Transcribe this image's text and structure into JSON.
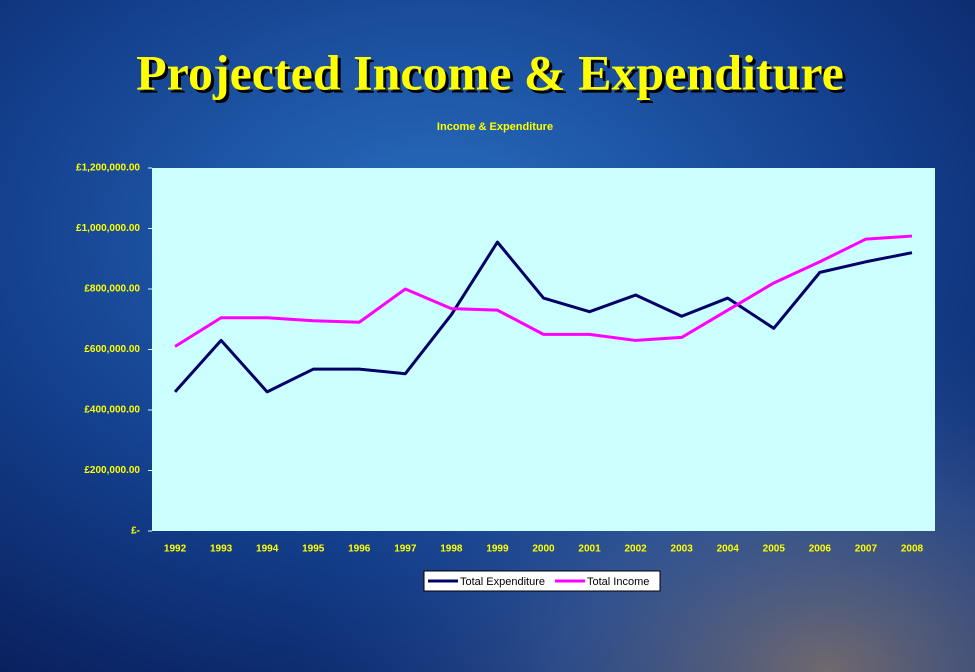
{
  "chart_data": {
    "type": "line",
    "title": "Projected Income & Expenditure",
    "subtitle": "Income & Expenditure",
    "categories": [
      "1992",
      "1993",
      "1994",
      "1995",
      "1996",
      "1997",
      "1998",
      "1999",
      "2000",
      "2001",
      "2002",
      "2003",
      "2004",
      "2005",
      "2006",
      "2007",
      "2008"
    ],
    "series": [
      {
        "name": "Total Expenditure",
        "color": "#000066",
        "values": [
          460000,
          630000,
          460000,
          535000,
          535000,
          520000,
          715000,
          955000,
          770000,
          725000,
          780000,
          710000,
          770000,
          670000,
          855000,
          890000,
          920000
        ]
      },
      {
        "name": "Total Income",
        "color": "#ff00ff",
        "values": [
          610000,
          705000,
          705000,
          695000,
          690000,
          800000,
          735000,
          730000,
          650000,
          650000,
          630000,
          640000,
          730000,
          820000,
          890000,
          965000,
          975000
        ]
      }
    ],
    "ylim": [
      0,
      1200000
    ],
    "yticks": [
      {
        "value": 0,
        "label": "£-"
      },
      {
        "value": 200000,
        "label": "£200,000.00"
      },
      {
        "value": 400000,
        "label": "£400,000.00"
      },
      {
        "value": 600000,
        "label": "£600,000.00"
      },
      {
        "value": 800000,
        "label": "£800,000.00"
      },
      {
        "value": 1000000,
        "label": "£1,000,000.00"
      },
      {
        "value": 1200000,
        "label": "£1,200,000.00"
      }
    ],
    "plot_background": "#ccffff",
    "legend": "bottom"
  }
}
